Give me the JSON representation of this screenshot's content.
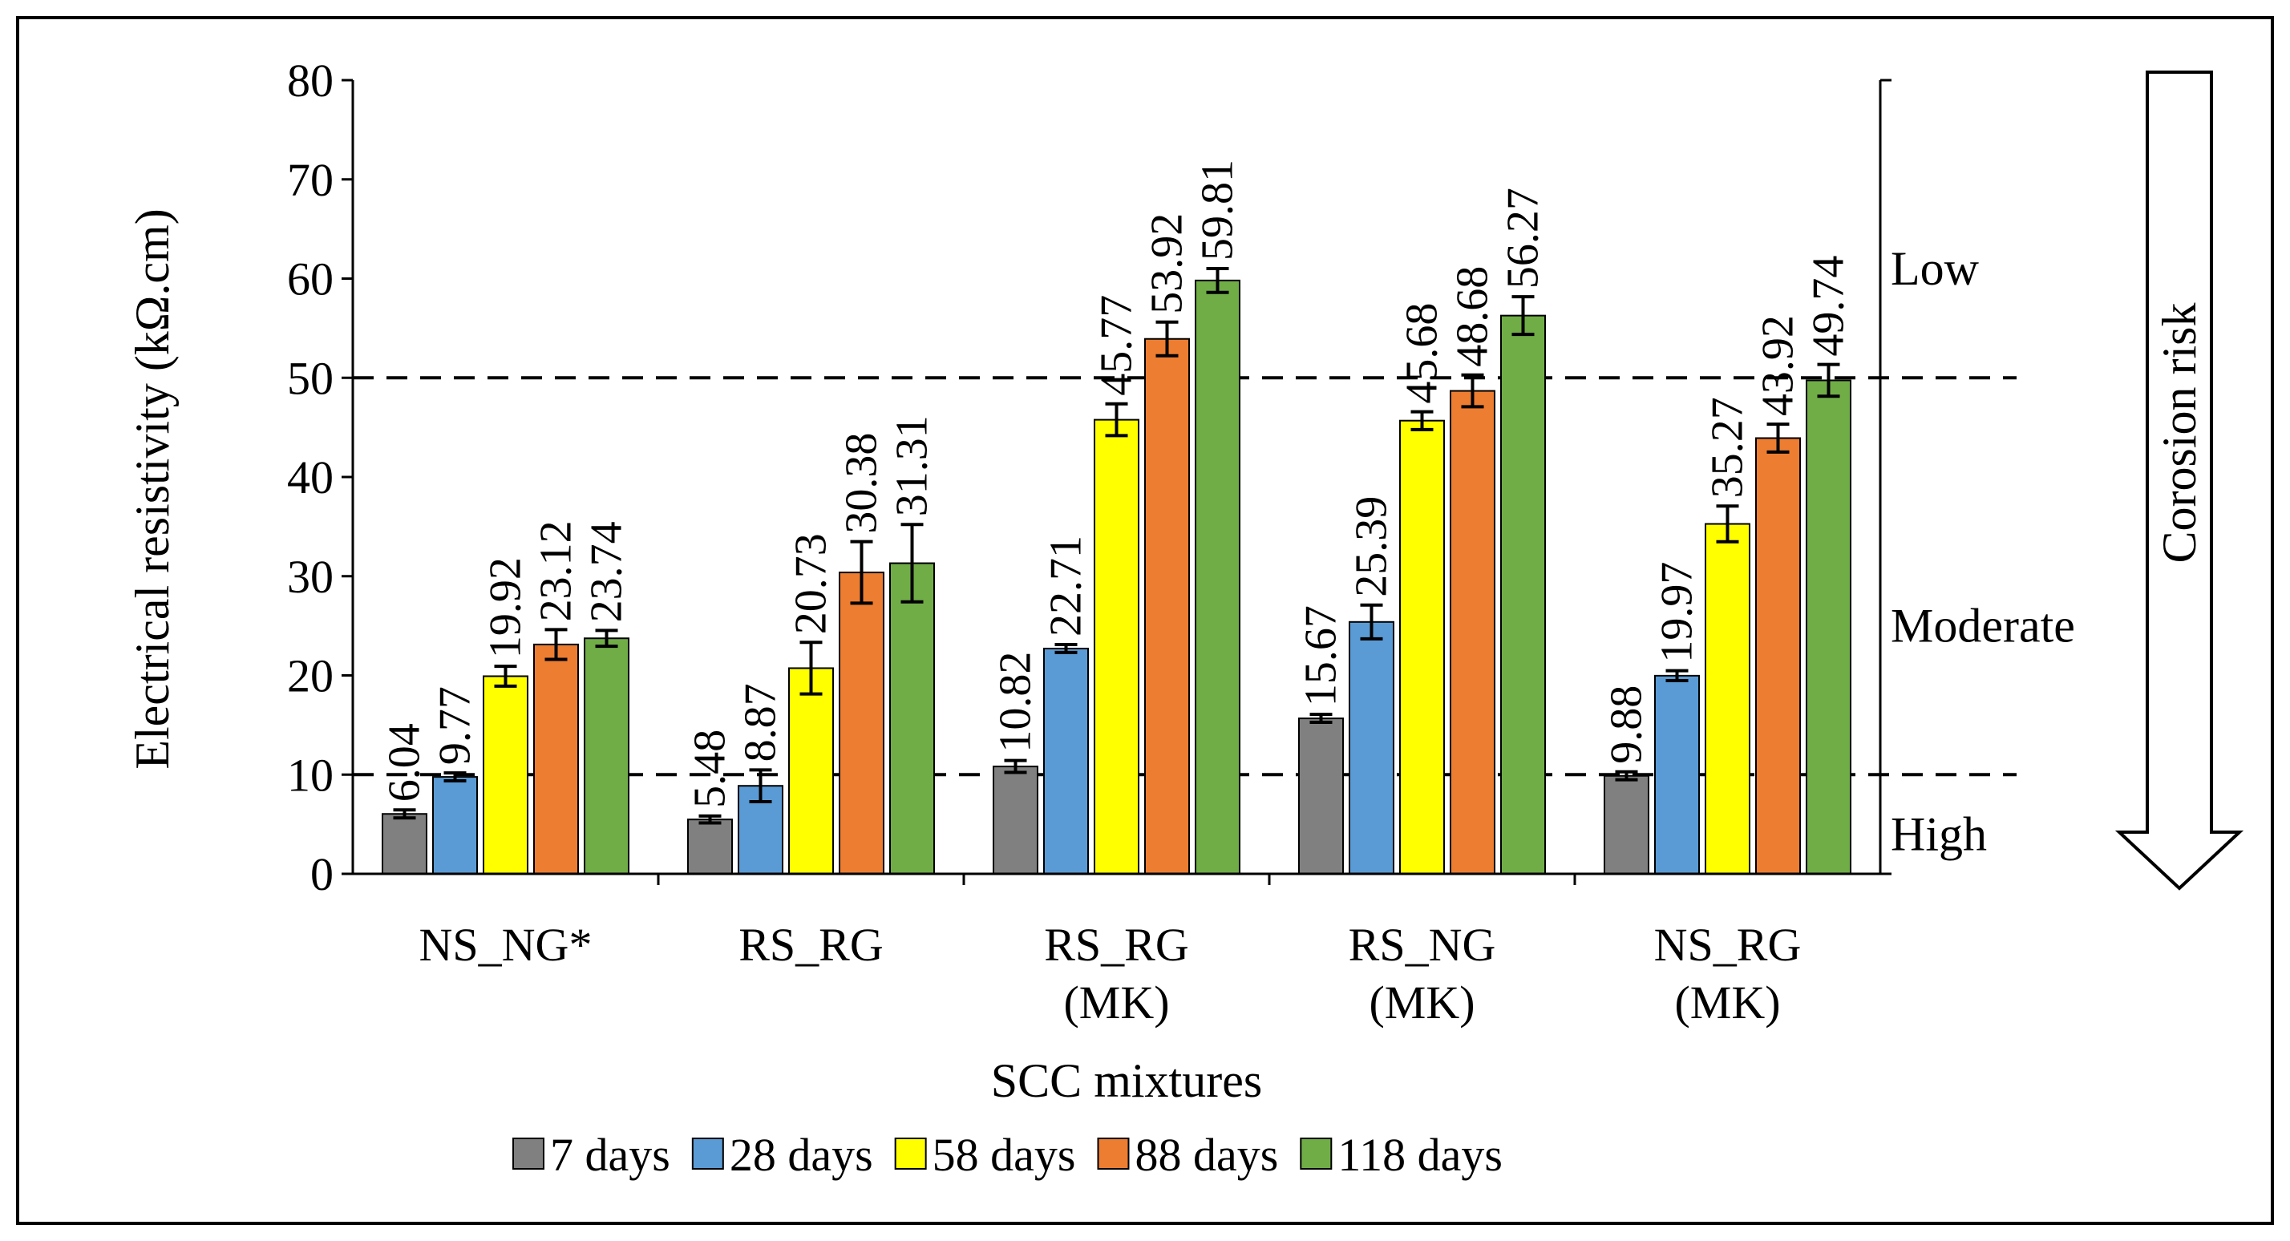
{
  "chart_data": {
    "type": "bar",
    "title": "",
    "xlabel": "SCC mixtures",
    "ylabel": "Electrical resistivity (kΩ.cm)",
    "ylim": [
      0,
      80
    ],
    "yticks": [
      0,
      10,
      20,
      30,
      40,
      50,
      60,
      70,
      80
    ],
    "categories": [
      [
        "NS_NG*"
      ],
      [
        "RS_RG"
      ],
      [
        "RS_RG",
        "(MK)"
      ],
      [
        "RS_NG",
        "(MK)"
      ],
      [
        "NS_RG",
        "(MK)"
      ]
    ],
    "series": [
      {
        "name": "7 days",
        "color": "#808080",
        "values": [
          6.04,
          5.48,
          10.82,
          15.67,
          9.88
        ],
        "labels": [
          "6.04",
          "5.48",
          "10.82",
          "15.67",
          "9.88"
        ],
        "errors": [
          0.4,
          0.35,
          0.6,
          0.4,
          0.4
        ]
      },
      {
        "name": "28 days",
        "color": "#5b9bd5",
        "values": [
          9.77,
          8.87,
          22.71,
          25.39,
          19.97
        ],
        "labels": [
          "9.77",
          "8.87",
          "22.71",
          "25.39",
          "19.97"
        ],
        "errors": [
          0.4,
          1.6,
          0.4,
          1.7,
          0.5
        ]
      },
      {
        "name": "58 days",
        "color": "#ffff00",
        "values": [
          19.92,
          20.73,
          45.77,
          45.68,
          35.27
        ],
        "labels": [
          "19.92",
          "20.73",
          "45.77",
          "45.68",
          "35.27"
        ],
        "errors": [
          1.0,
          2.6,
          1.6,
          0.9,
          1.8
        ]
      },
      {
        "name": "88 days",
        "color": "#ed7d31",
        "values": [
          23.12,
          30.38,
          53.92,
          48.68,
          43.92
        ],
        "labels": [
          "23.12",
          "30.38",
          "53.92",
          "48.68",
          "43.92"
        ],
        "errors": [
          1.5,
          3.1,
          1.7,
          1.6,
          1.4
        ]
      },
      {
        "name": "118 days",
        "color": "#70ad47",
        "values": [
          23.74,
          31.31,
          59.81,
          56.27,
          49.74
        ],
        "labels": [
          "23.74",
          "31.31",
          "59.81",
          "56.27",
          "49.74"
        ],
        "errors": [
          0.8,
          3.9,
          1.2,
          1.9,
          1.6
        ]
      }
    ],
    "thresholds": [
      {
        "value": 50,
        "style": "dashed"
      },
      {
        "value": 10,
        "style": "dashed"
      }
    ],
    "risk_labels": [
      {
        "text": "Low",
        "level": 61
      },
      {
        "text": "Moderate",
        "level": 25
      },
      {
        "text": "High",
        "level": 4
      }
    ],
    "risk_title": "Corosion risk",
    "legend_position": "bottom"
  }
}
